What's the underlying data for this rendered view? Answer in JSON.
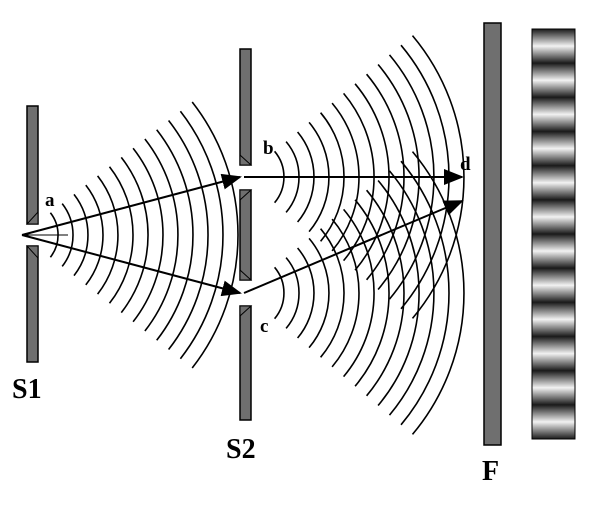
{
  "labels": {
    "a": "a",
    "b": "b",
    "c": "c",
    "d": "d",
    "S1": "S1",
    "S2": "S2",
    "F": "F"
  },
  "colors": {
    "barrier": "#6f6f6f",
    "outline": "#000000",
    "wave": "#000000",
    "fringe_dark": "#1a1a1a",
    "fringe_light": "#f2f2f2"
  },
  "fringe_pattern": {
    "bright_bands": 12
  }
}
